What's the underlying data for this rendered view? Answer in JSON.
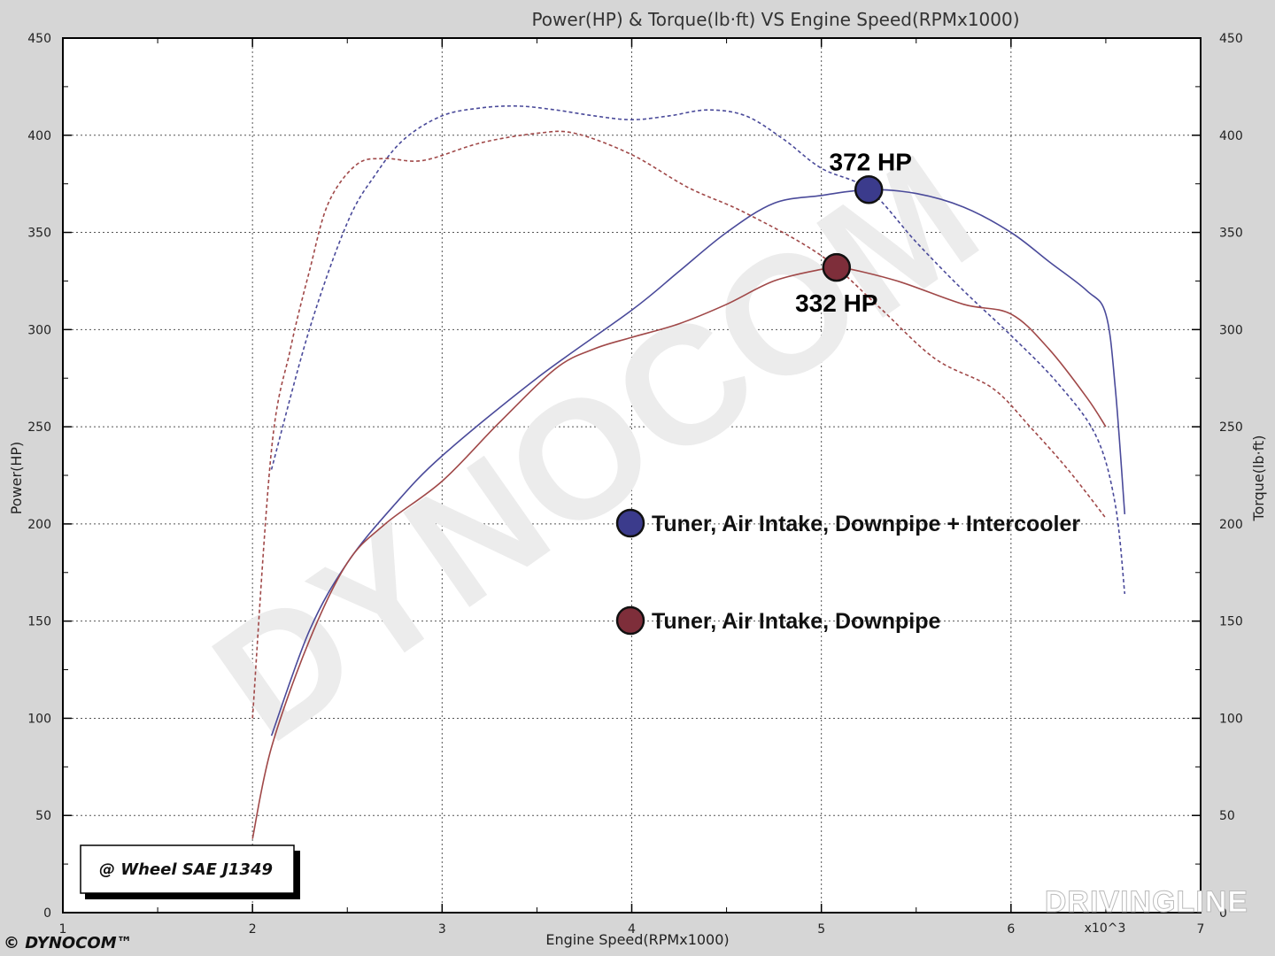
{
  "chart_data": {
    "type": "line",
    "title": "Power(HP) & Torque(lb·ft) VS Engine Speed(RPMx1000)",
    "xlabel": "Engine Speed(RPMx1000)",
    "ylabel_left": "Power(HP)",
    "ylabel_right": "Torque(lb·ft)",
    "x_multiplier_label": "x10^3",
    "xlim": [
      1,
      7
    ],
    "ylim": [
      0,
      450
    ],
    "x_ticks": [
      "1",
      "2",
      "3",
      "4",
      "5",
      "6",
      "7"
    ],
    "y_ticks": [
      "0",
      "50",
      "100",
      "150",
      "200",
      "250",
      "300",
      "350",
      "400",
      "450"
    ],
    "y_ticks_right": [
      "0",
      "50",
      "100",
      "150",
      "200",
      "250",
      "300",
      "350",
      "400",
      "450"
    ],
    "grid": true,
    "series": [
      {
        "name": "Tuner, Air Intake, Downpipe + Intercooler",
        "kind": "power",
        "style": "solid",
        "color": "#4a4a9a",
        "x": [
          2.1,
          2.3,
          2.5,
          2.75,
          3.0,
          3.5,
          4.0,
          4.25,
          4.5,
          4.75,
          5.0,
          5.25,
          5.5,
          5.75,
          6.0,
          6.2,
          6.4,
          6.5,
          6.55,
          6.6
        ],
        "y": [
          91,
          145,
          180,
          210,
          235,
          275,
          310,
          330,
          350,
          365,
          369,
          372,
          370,
          363,
          350,
          335,
          320,
          308,
          270,
          205
        ]
      },
      {
        "name": "Tuner, Air Intake, Downpipe + Intercooler",
        "kind": "torque",
        "style": "dashed",
        "color": "#4a4a9a",
        "x": [
          2.1,
          2.3,
          2.5,
          2.65,
          2.8,
          3.0,
          3.2,
          3.4,
          3.6,
          3.8,
          4.0,
          4.2,
          4.4,
          4.6,
          4.8,
          5.0,
          5.25,
          5.5,
          5.75,
          6.0,
          6.25,
          6.45,
          6.55,
          6.6
        ],
        "y": [
          228,
          300,
          355,
          380,
          398,
          410,
          414,
          415,
          413,
          410,
          408,
          410,
          413,
          410,
          398,
          383,
          372,
          345,
          320,
          297,
          272,
          245,
          210,
          164
        ]
      },
      {
        "name": "Tuner, Air Intake, Downpipe",
        "kind": "power",
        "style": "solid",
        "color": "#a04848",
        "x": [
          2.0,
          2.1,
          2.3,
          2.5,
          2.7,
          3.0,
          3.3,
          3.6,
          3.8,
          4.0,
          4.25,
          4.5,
          4.75,
          5.0,
          5.1,
          5.4,
          5.75,
          6.0,
          6.2,
          6.4,
          6.5
        ],
        "y": [
          38,
          85,
          140,
          180,
          200,
          222,
          252,
          280,
          290,
          296,
          303,
          313,
          325,
          331,
          332,
          325,
          313,
          308,
          290,
          265,
          250
        ]
      },
      {
        "name": "Tuner, Air Intake, Downpipe",
        "kind": "torque",
        "style": "dashed",
        "color": "#a04848",
        "x": [
          2.0,
          2.1,
          2.2,
          2.3,
          2.4,
          2.55,
          2.7,
          2.9,
          3.2,
          3.5,
          3.7,
          4.0,
          4.3,
          4.6,
          5.0,
          5.3,
          5.6,
          5.9,
          6.1,
          6.3,
          6.5
        ],
        "y": [
          100,
          238,
          290,
          330,
          365,
          385,
          388,
          387,
          396,
          401,
          401,
          390,
          373,
          360,
          338,
          312,
          285,
          270,
          250,
          228,
          203
        ]
      }
    ],
    "peaks": [
      {
        "x": 5.25,
        "y": 372,
        "label": "372 HP",
        "color": "#3b3b8c"
      },
      {
        "x": 5.08,
        "y": 332,
        "label": "332 HP",
        "color": "#7e2e3a"
      }
    ],
    "legend": {
      "placement": "center",
      "entries": [
        {
          "label": "Tuner, Air Intake, Downpipe + Intercooler",
          "color": "#3b3b8c"
        },
        {
          "label": "Tuner, Air Intake, Downpipe",
          "color": "#7e2e3a"
        }
      ]
    }
  },
  "badge": {
    "text": "@ Wheel SAE J1349"
  },
  "logo": {
    "text": "© DYNOCOM™"
  },
  "watermarks": {
    "center": "DYNOCOM",
    "corner": "DRIVINGLINE"
  }
}
